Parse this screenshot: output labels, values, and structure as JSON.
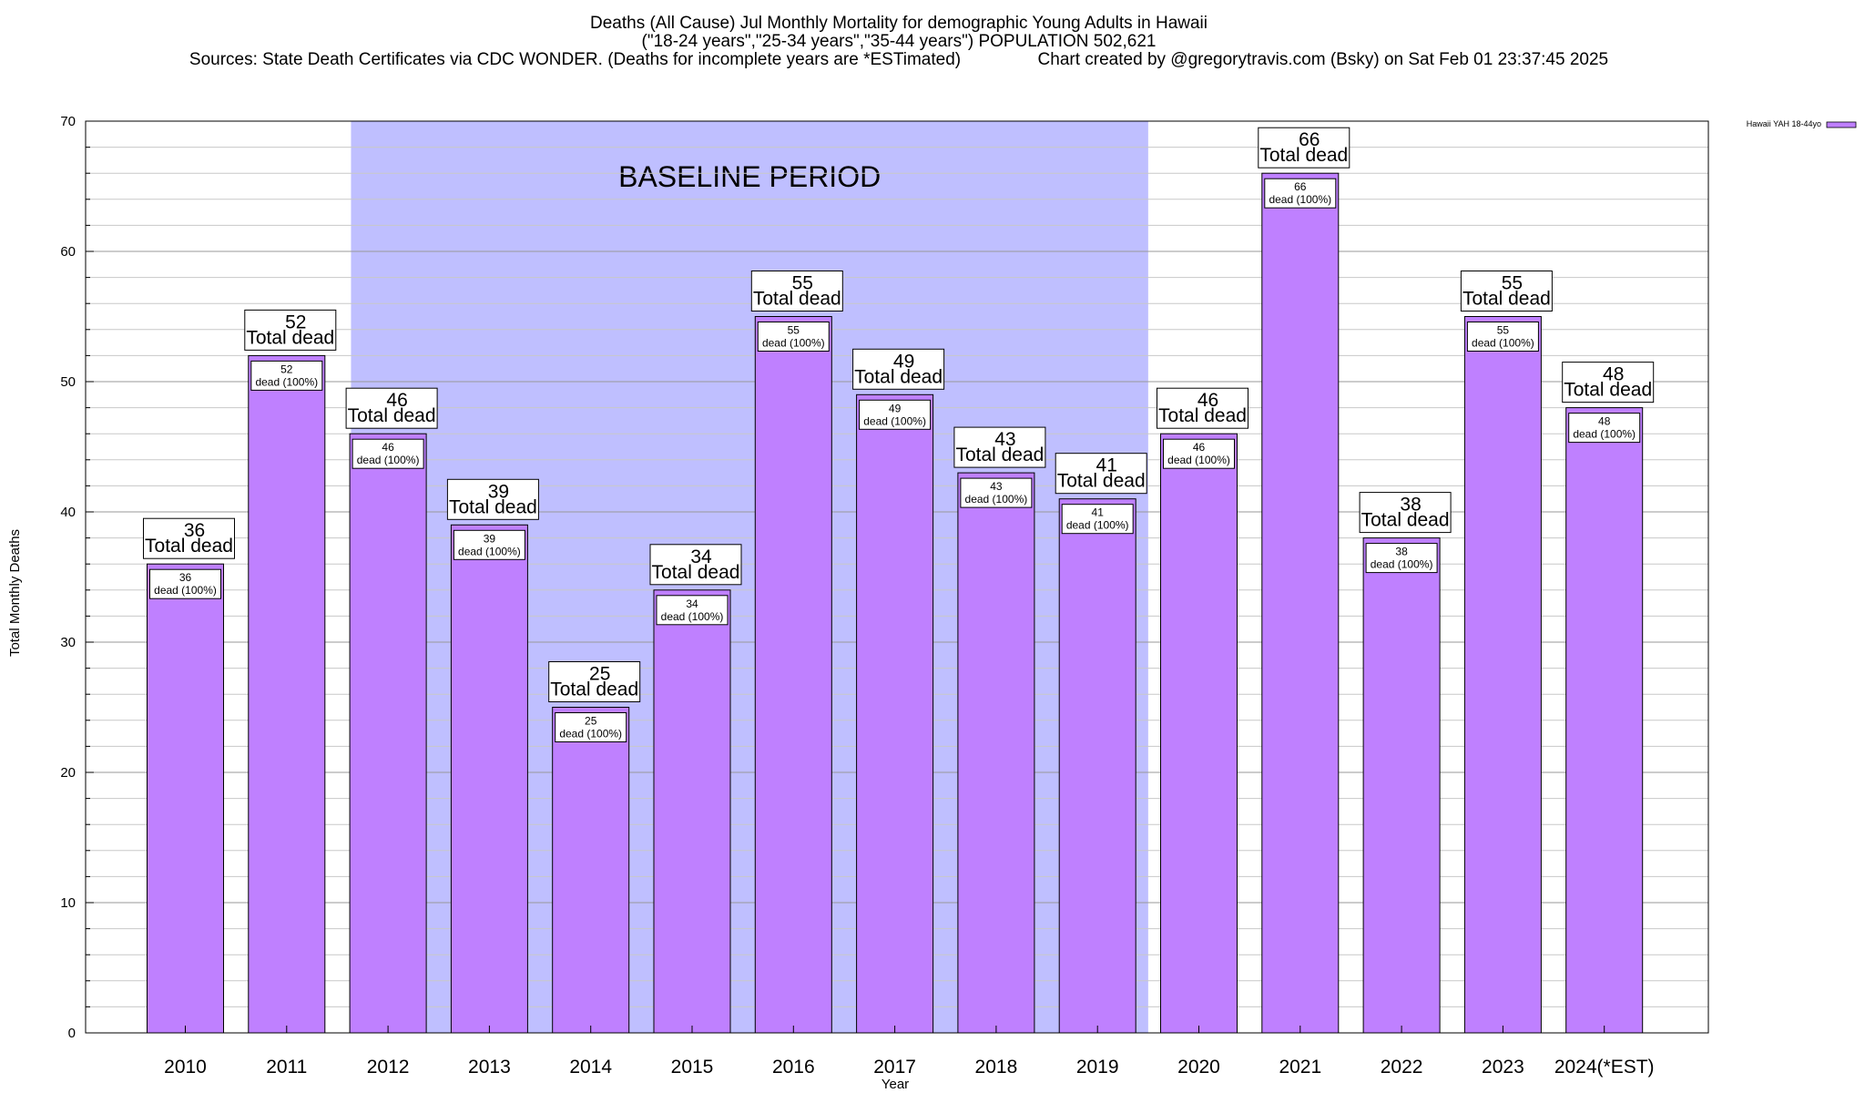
{
  "chart_data": {
    "type": "bar",
    "title_lines": [
      "Deaths (All Cause) Jul Monthly Mortality for demographic Young Adults in Hawaii",
      "(\"18-24 years\",\"25-34 years\",\"35-44 years\") POPULATION 502,621",
      "Sources: State Death Certificates via CDC WONDER. (Deaths for incomplete years are *ESTimated)                Chart created by @gregorytravis.com (Bsky) on Sat Feb 01 23:37:45 2025"
    ],
    "xlabel": "Year",
    "ylabel": "Total Monthly Deaths",
    "ylim": [
      0,
      70
    ],
    "y_major_ticks": [
      0,
      10,
      20,
      30,
      40,
      50,
      60,
      70
    ],
    "y_minor_step": 2,
    "categories": [
      "2010",
      "2011",
      "2012",
      "2013",
      "2014",
      "2015",
      "2016",
      "2017",
      "2018",
      "2019",
      "2020",
      "2021",
      "2022",
      "2023",
      "2024(*EST)"
    ],
    "series": [
      {
        "name": "Hawaii YAH 18-44yo",
        "values": [
          36,
          52,
          46,
          39,
          25,
          34,
          55,
          49,
          43,
          41,
          46,
          66,
          38,
          55,
          48
        ],
        "color": "#bf80ff"
      }
    ],
    "top_label_suffix": "Total dead",
    "inner_label_suffix": "dead (100%)",
    "baseline_period": {
      "label": "BASELINE PERIOD",
      "from_category": "2012",
      "to_category": "2019",
      "color": "#bfbfff"
    },
    "legend": {
      "position": "top-right"
    },
    "grid": true
  }
}
